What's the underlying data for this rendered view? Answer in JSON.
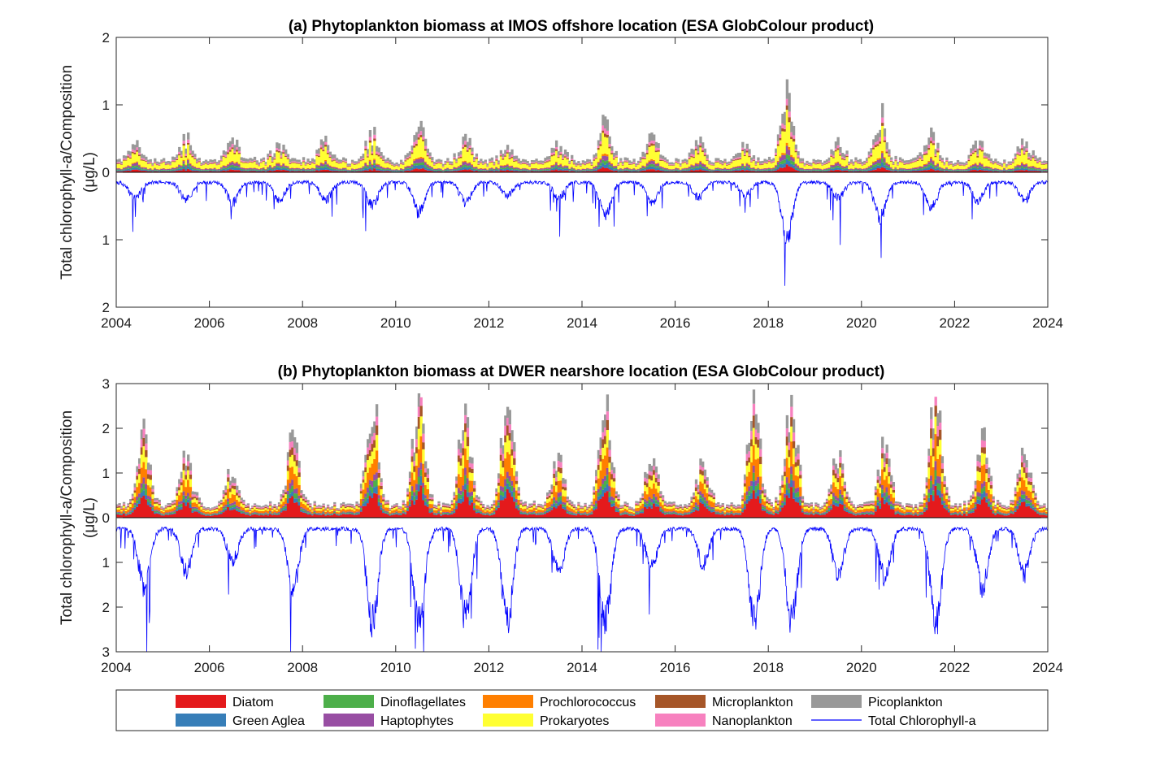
{
  "chart_data": [
    {
      "type": "area",
      "title": "(a) Phytoplankton biomass at IMOS offshore location (ESA GlobColour product)",
      "ylabel_line1": "Total chlorophyll-a/Composition",
      "ylabel_line2": "(μg/L)",
      "xlim": [
        2004,
        2024
      ],
      "xticks": [
        "2004",
        "2006",
        "2008",
        "2010",
        "2012",
        "2014",
        "2016",
        "2018",
        "2020",
        "2022",
        "2024"
      ],
      "ylim_top": [
        0,
        2
      ],
      "ylim_bottom_inverted": [
        0,
        2
      ],
      "yticks_top": [
        "0",
        "1",
        "2"
      ],
      "yticks_bottom": [
        "1",
        "2"
      ],
      "series_note_top": "stacked composition",
      "seasonal_peaks": [
        {
          "year": 2004.4,
          "total_chl": 0.45
        },
        {
          "year": 2005.5,
          "total_chl": 0.5
        },
        {
          "year": 2006.5,
          "total_chl": 0.55
        },
        {
          "year": 2007.5,
          "total_chl": 0.5
        },
        {
          "year": 2008.5,
          "total_chl": 0.5
        },
        {
          "year": 2009.5,
          "total_chl": 0.6
        },
        {
          "year": 2010.5,
          "total_chl": 0.75
        },
        {
          "year": 2011.5,
          "total_chl": 0.55
        },
        {
          "year": 2012.4,
          "total_chl": 0.4
        },
        {
          "year": 2013.5,
          "total_chl": 0.45
        },
        {
          "year": 2014.5,
          "total_chl": 0.8
        },
        {
          "year": 2015.5,
          "total_chl": 0.55
        },
        {
          "year": 2016.5,
          "total_chl": 0.45
        },
        {
          "year": 2017.5,
          "total_chl": 0.4
        },
        {
          "year": 2018.4,
          "total_chl": 1.25
        },
        {
          "year": 2019.5,
          "total_chl": 0.45
        },
        {
          "year": 2020.4,
          "total_chl": 0.85
        },
        {
          "year": 2021.5,
          "total_chl": 0.65
        },
        {
          "year": 2022.5,
          "total_chl": 0.5
        },
        {
          "year": 2023.5,
          "total_chl": 0.5
        }
      ],
      "baseline_total_chl": 0.15
    },
    {
      "type": "area",
      "title": "(b) Phytoplankton biomass at DWER nearshore location (ESA GlobColour product)",
      "ylabel_line1": "Total chlorophyll-a/Composition",
      "ylabel_line2": "(μg/L)",
      "xlim": [
        2004,
        2024
      ],
      "xticks": [
        "2004",
        "2006",
        "2008",
        "2010",
        "2012",
        "2014",
        "2016",
        "2018",
        "2020",
        "2022",
        "2024"
      ],
      "ylim_top": [
        0,
        3
      ],
      "ylim_bottom_inverted": [
        0,
        3
      ],
      "yticks_top": [
        "0",
        "1",
        "2",
        "3"
      ],
      "yticks_bottom": [
        "1",
        "2",
        "3"
      ],
      "seasonal_peaks": [
        {
          "year": 2004.6,
          "total_chl": 2.0
        },
        {
          "year": 2005.5,
          "total_chl": 1.5
        },
        {
          "year": 2006.5,
          "total_chl": 1.2
        },
        {
          "year": 2007.8,
          "total_chl": 2.0
        },
        {
          "year": 2009.5,
          "total_chl": 3.0
        },
        {
          "year": 2010.5,
          "total_chl": 3.0
        },
        {
          "year": 2011.5,
          "total_chl": 2.9
        },
        {
          "year": 2012.4,
          "total_chl": 3.0
        },
        {
          "year": 2013.5,
          "total_chl": 1.5
        },
        {
          "year": 2014.5,
          "total_chl": 3.0
        },
        {
          "year": 2015.5,
          "total_chl": 1.4
        },
        {
          "year": 2016.6,
          "total_chl": 1.3
        },
        {
          "year": 2017.7,
          "total_chl": 3.0
        },
        {
          "year": 2018.5,
          "total_chl": 3.0
        },
        {
          "year": 2019.5,
          "total_chl": 1.6
        },
        {
          "year": 2020.5,
          "total_chl": 1.7
        },
        {
          "year": 2021.6,
          "total_chl": 3.0
        },
        {
          "year": 2022.6,
          "total_chl": 2.0
        },
        {
          "year": 2023.5,
          "total_chl": 1.6
        }
      ],
      "baseline_total_chl": 0.25
    }
  ],
  "legend": [
    {
      "label": "Diatom",
      "color": "#e41a1c",
      "kind": "patch"
    },
    {
      "label": "Green Aglea",
      "color": "#377eb8",
      "kind": "patch"
    },
    {
      "label": "Dinoflagellates",
      "color": "#4daf4a",
      "kind": "patch"
    },
    {
      "label": "Haptophytes",
      "color": "#984ea3",
      "kind": "patch"
    },
    {
      "label": "Prochlorococcus",
      "color": "#ff7f00",
      "kind": "patch"
    },
    {
      "label": "Prokaryotes",
      "color": "#ffff33",
      "kind": "patch"
    },
    {
      "label": "Microplankton",
      "color": "#a65628",
      "kind": "patch"
    },
    {
      "label": "Nanoplankton",
      "color": "#f781bf",
      "kind": "patch"
    },
    {
      "label": "Picoplankton",
      "color": "#999999",
      "kind": "patch"
    },
    {
      "label": "Total Chlorophyll-a",
      "color": "#0000ff",
      "kind": "line"
    }
  ]
}
